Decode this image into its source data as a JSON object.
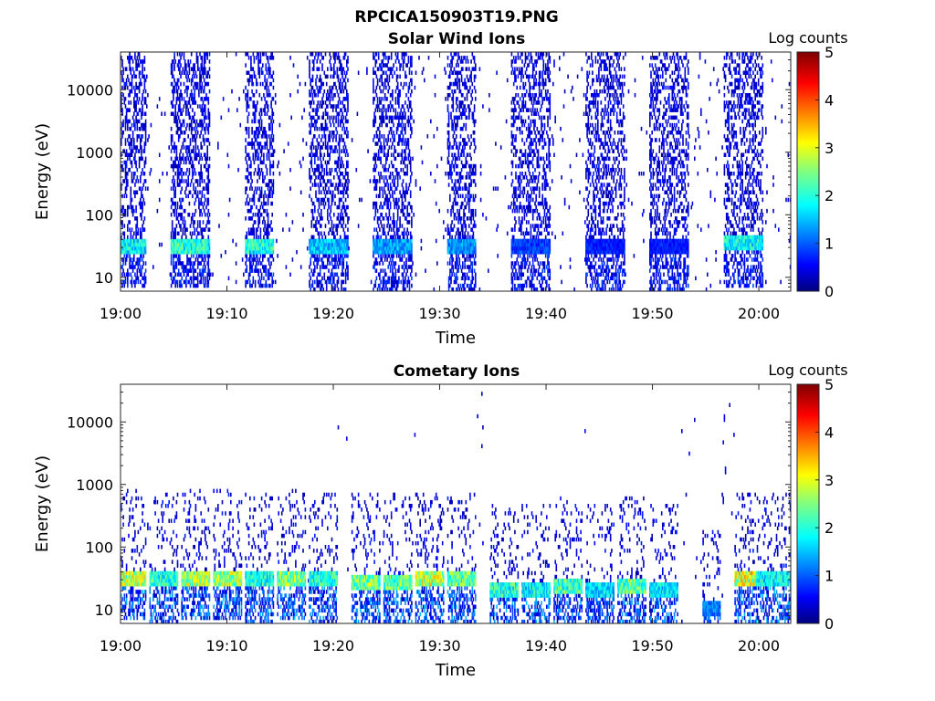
{
  "figure": {
    "title": "RPCICA150903T19.PNG"
  },
  "chart_data": [
    {
      "type": "heatmap",
      "title": "Solar Wind Ions",
      "xlabel": "Time",
      "ylabel": "Energy (eV)",
      "y_scale": "log",
      "ylim": [
        6,
        40000
      ],
      "xlim": [
        "19:00",
        "20:03"
      ],
      "x_ticks": [
        "19:00",
        "19:10",
        "19:20",
        "19:30",
        "19:40",
        "19:50",
        "20:00"
      ],
      "y_ticks": [
        "10",
        "100",
        "1000",
        "10000"
      ],
      "colorbar": {
        "label": "Log counts",
        "range": [
          0,
          5
        ],
        "ticks": [
          "0",
          "1",
          "2",
          "3",
          "4",
          "5"
        ]
      },
      "bursts": [
        {
          "start": "19:00",
          "end": "19:02",
          "peak_energy_eV": 33,
          "peak_log_counts": 2.4
        },
        {
          "start": "19:05",
          "end": "19:08",
          "peak_energy_eV": 33,
          "peak_log_counts": 2.6
        },
        {
          "start": "19:12",
          "end": "19:14",
          "peak_energy_eV": 33,
          "peak_log_counts": 2.6
        },
        {
          "start": "19:18",
          "end": "19:21",
          "peak_energy_eV": 30,
          "peak_log_counts": 2.0
        },
        {
          "start": "19:24",
          "end": "19:27",
          "peak_energy_eV": 30,
          "peak_log_counts": 1.8
        },
        {
          "start": "19:31",
          "end": "19:33",
          "peak_energy_eV": 30,
          "peak_log_counts": 1.7
        },
        {
          "start": "19:37",
          "end": "19:40",
          "peak_energy_eV": 30,
          "peak_log_counts": 1.2
        },
        {
          "start": "19:44",
          "end": "19:47",
          "peak_energy_eV": 30,
          "peak_log_counts": 1.0
        },
        {
          "start": "19:50",
          "end": "19:53",
          "peak_energy_eV": 30,
          "peak_log_counts": 1.0
        },
        {
          "start": "19:57",
          "end": "20:00",
          "peak_energy_eV": 35,
          "peak_log_counts": 2.4
        }
      ]
    },
    {
      "type": "heatmap",
      "title": "Cometary Ions",
      "xlabel": "Time",
      "ylabel": "Energy (eV)",
      "y_scale": "log",
      "ylim": [
        6,
        40000
      ],
      "xlim": [
        "19:00",
        "20:03"
      ],
      "x_ticks": [
        "19:00",
        "19:10",
        "19:20",
        "19:30",
        "19:40",
        "19:50",
        "20:00"
      ],
      "y_ticks": [
        "10",
        "100",
        "1000",
        "10000"
      ],
      "colorbar": {
        "label": "Log counts",
        "range": [
          0,
          5
        ],
        "ticks": [
          "0",
          "1",
          "2",
          "3",
          "4",
          "5"
        ]
      },
      "bursts": [
        {
          "start": "19:00",
          "end": "19:02",
          "peak_energy_eV": 33,
          "peak_log_counts": 3.6
        },
        {
          "start": "19:03",
          "end": "19:05",
          "peak_energy_eV": 30,
          "peak_log_counts": 2.6
        },
        {
          "start": "19:06",
          "end": "19:08",
          "peak_energy_eV": 33,
          "peak_log_counts": 3.4
        },
        {
          "start": "19:09",
          "end": "19:11",
          "peak_energy_eV": 33,
          "peak_log_counts": 3.4
        },
        {
          "start": "19:12",
          "end": "19:14",
          "peak_energy_eV": 30,
          "peak_log_counts": 2.6
        },
        {
          "start": "19:15",
          "end": "19:17",
          "peak_energy_eV": 33,
          "peak_log_counts": 3.2
        },
        {
          "start": "19:18",
          "end": "19:20",
          "peak_energy_eV": 30,
          "peak_log_counts": 2.6
        },
        {
          "start": "19:22",
          "end": "19:24",
          "peak_energy_eV": 28,
          "peak_log_counts": 3.2
        },
        {
          "start": "19:25",
          "end": "19:27",
          "peak_energy_eV": 28,
          "peak_log_counts": 3.0
        },
        {
          "start": "19:28",
          "end": "19:30",
          "peak_energy_eV": 30,
          "peak_log_counts": 3.6
        },
        {
          "start": "19:31",
          "end": "19:33",
          "peak_energy_eV": 30,
          "peak_log_counts": 3.0
        },
        {
          "start": "19:35",
          "end": "19:37",
          "peak_energy_eV": 20,
          "peak_log_counts": 2.6
        },
        {
          "start": "19:38",
          "end": "19:40",
          "peak_energy_eV": 20,
          "peak_log_counts": 2.4
        },
        {
          "start": "19:41",
          "end": "19:43",
          "peak_energy_eV": 25,
          "peak_log_counts": 2.8
        },
        {
          "start": "19:44",
          "end": "19:46",
          "peak_energy_eV": 20,
          "peak_log_counts": 2.2
        },
        {
          "start": "19:47",
          "end": "19:49",
          "peak_energy_eV": 25,
          "peak_log_counts": 3.0
        },
        {
          "start": "19:50",
          "end": "19:52",
          "peak_energy_eV": 20,
          "peak_log_counts": 2.2
        },
        {
          "start": "19:55",
          "end": "19:56",
          "peak_energy_eV": 10,
          "peak_log_counts": 1.6
        },
        {
          "start": "19:58",
          "end": "20:00",
          "peak_energy_eV": 30,
          "peak_log_counts": 3.8
        },
        {
          "start": "20:00",
          "end": "20:03",
          "peak_energy_eV": 30,
          "peak_log_counts": 2.4
        }
      ]
    }
  ]
}
